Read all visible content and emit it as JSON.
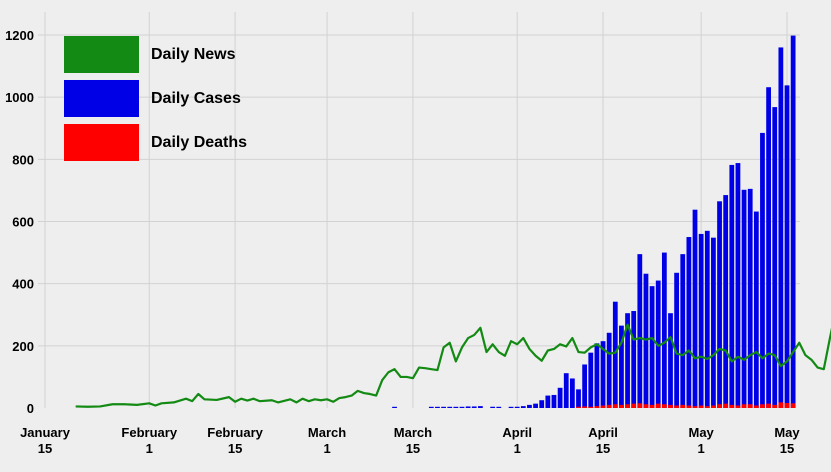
{
  "chart_data": {
    "type": "bar",
    "ylim": [
      0,
      1200
    ],
    "y_ticks": [
      0,
      200,
      400,
      600,
      800,
      1000,
      1200
    ],
    "x_ticks": [
      {
        "date": "2020-01-15",
        "lines": [
          "January",
          "15"
        ]
      },
      {
        "date": "2020-02-01",
        "lines": [
          "February",
          "1"
        ]
      },
      {
        "date": "2020-02-15",
        "lines": [
          "February",
          "15"
        ]
      },
      {
        "date": "2020-03-01",
        "lines": [
          "March",
          "1"
        ]
      },
      {
        "date": "2020-03-15",
        "lines": [
          "March",
          "15"
        ]
      },
      {
        "date": "2020-04-01",
        "lines": [
          "April",
          "1"
        ]
      },
      {
        "date": "2020-04-15",
        "lines": [
          "April",
          "15"
        ]
      },
      {
        "date": "2020-05-01",
        "lines": [
          "May",
          "1"
        ]
      },
      {
        "date": "2020-05-15",
        "lines": [
          "May",
          "15"
        ]
      }
    ],
    "grid": true,
    "legend_position": "top-left",
    "series": [
      {
        "name": "Daily News",
        "type": "line",
        "color": "#138a13",
        "points": [
          [
            "2020-01-20",
            5
          ],
          [
            "2020-01-22",
            4
          ],
          [
            "2020-01-24",
            5
          ],
          [
            "2020-01-26",
            12
          ],
          [
            "2020-01-28",
            12
          ],
          [
            "2020-01-30",
            10
          ],
          [
            "2020-02-01",
            15
          ],
          [
            "2020-02-02",
            8
          ],
          [
            "2020-02-03",
            15
          ],
          [
            "2020-02-05",
            18
          ],
          [
            "2020-02-07",
            30
          ],
          [
            "2020-02-08",
            22
          ],
          [
            "2020-02-09",
            45
          ],
          [
            "2020-02-10",
            28
          ],
          [
            "2020-02-12",
            26
          ],
          [
            "2020-02-14",
            35
          ],
          [
            "2020-02-15",
            20
          ],
          [
            "2020-02-16",
            30
          ],
          [
            "2020-02-17",
            24
          ],
          [
            "2020-02-18",
            30
          ],
          [
            "2020-02-19",
            22
          ],
          [
            "2020-02-21",
            25
          ],
          [
            "2020-02-22",
            18
          ],
          [
            "2020-02-24",
            28
          ],
          [
            "2020-02-25",
            18
          ],
          [
            "2020-02-26",
            30
          ],
          [
            "2020-02-27",
            22
          ],
          [
            "2020-02-28",
            28
          ],
          [
            "2020-02-29",
            25
          ],
          [
            "2020-03-01",
            28
          ],
          [
            "2020-03-02",
            20
          ],
          [
            "2020-03-03",
            32
          ],
          [
            "2020-03-04",
            35
          ],
          [
            "2020-03-05",
            40
          ],
          [
            "2020-03-06",
            55
          ],
          [
            "2020-03-07",
            48
          ],
          [
            "2020-03-08",
            45
          ],
          [
            "2020-03-09",
            40
          ],
          [
            "2020-03-10",
            90
          ],
          [
            "2020-03-11",
            115
          ],
          [
            "2020-03-12",
            125
          ],
          [
            "2020-03-13",
            100
          ],
          [
            "2020-03-14",
            100
          ],
          [
            "2020-03-15",
            96
          ],
          [
            "2020-03-16",
            130
          ],
          [
            "2020-03-17",
            128
          ],
          [
            "2020-03-18",
            125
          ],
          [
            "2020-03-19",
            122
          ],
          [
            "2020-03-20",
            195
          ],
          [
            "2020-03-21",
            210
          ],
          [
            "2020-03-22",
            150
          ],
          [
            "2020-03-23",
            195
          ],
          [
            "2020-03-24",
            225
          ],
          [
            "2020-03-25",
            235
          ],
          [
            "2020-03-26",
            258
          ],
          [
            "2020-03-27",
            180
          ],
          [
            "2020-03-28",
            205
          ],
          [
            "2020-03-29",
            180
          ],
          [
            "2020-03-30",
            168
          ],
          [
            "2020-03-31",
            215
          ],
          [
            "2020-04-01",
            205
          ],
          [
            "2020-04-02",
            225
          ],
          [
            "2020-04-03",
            190
          ],
          [
            "2020-04-04",
            168
          ],
          [
            "2020-04-05",
            152
          ],
          [
            "2020-04-06",
            185
          ],
          [
            "2020-04-07",
            190
          ],
          [
            "2020-04-08",
            205
          ],
          [
            "2020-04-09",
            198
          ],
          [
            "2020-04-10",
            225
          ],
          [
            "2020-04-11",
            180
          ],
          [
            "2020-04-12",
            178
          ],
          [
            "2020-04-13",
            195
          ],
          [
            "2020-04-14",
            205
          ],
          [
            "2020-04-15",
            190
          ],
          [
            "2020-04-16",
            175
          ],
          [
            "2020-04-17",
            178
          ],
          [
            "2020-04-18",
            210
          ],
          [
            "2020-04-19",
            268
          ],
          [
            "2020-04-20",
            220
          ],
          [
            "2020-04-21",
            225
          ],
          [
            "2020-04-22",
            220
          ],
          [
            "2020-04-23",
            225
          ],
          [
            "2020-04-24",
            200
          ],
          [
            "2020-04-25",
            210
          ],
          [
            "2020-04-26",
            228
          ],
          [
            "2020-04-27",
            175
          ],
          [
            "2020-04-28",
            170
          ],
          [
            "2020-04-29",
            185
          ],
          [
            "2020-04-30",
            160
          ],
          [
            "2020-05-01",
            165
          ],
          [
            "2020-05-02",
            158
          ],
          [
            "2020-05-03",
            170
          ],
          [
            "2020-05-04",
            190
          ],
          [
            "2020-05-05",
            185
          ],
          [
            "2020-05-06",
            150
          ],
          [
            "2020-05-07",
            165
          ],
          [
            "2020-05-08",
            155
          ],
          [
            "2020-05-09",
            170
          ],
          [
            "2020-05-10",
            180
          ],
          [
            "2020-05-11",
            160
          ],
          [
            "2020-05-12",
            175
          ],
          [
            "2020-05-13",
            170
          ],
          [
            "2020-05-14",
            135
          ],
          [
            "2020-05-15",
            150
          ],
          [
            "2020-05-16",
            180
          ],
          [
            "2020-05-17",
            210
          ],
          [
            "2020-05-18",
            170
          ],
          [
            "2020-05-19",
            155
          ],
          [
            "2020-05-20",
            130
          ],
          [
            "2020-05-21",
            125
          ],
          [
            "2020-05-22",
            225
          ],
          [
            "2020-05-23",
            320
          ]
        ]
      },
      {
        "name": "Daily Cases",
        "type": "bar",
        "color": "#0000e6",
        "points": [
          [
            "2020-03-12",
            2
          ],
          [
            "2020-03-18",
            2
          ],
          [
            "2020-03-19",
            2
          ],
          [
            "2020-03-20",
            2
          ],
          [
            "2020-03-21",
            2
          ],
          [
            "2020-03-22",
            3
          ],
          [
            "2020-03-23",
            3
          ],
          [
            "2020-03-24",
            5
          ],
          [
            "2020-03-25",
            5
          ],
          [
            "2020-03-26",
            6
          ],
          [
            "2020-03-28",
            4
          ],
          [
            "2020-03-29",
            3
          ],
          [
            "2020-03-31",
            2
          ],
          [
            "2020-04-01",
            4
          ],
          [
            "2020-04-02",
            6
          ],
          [
            "2020-04-03",
            10
          ],
          [
            "2020-04-04",
            14
          ],
          [
            "2020-04-05",
            25
          ],
          [
            "2020-04-06",
            40
          ],
          [
            "2020-04-07",
            42
          ],
          [
            "2020-04-08",
            65
          ],
          [
            "2020-04-09",
            112
          ],
          [
            "2020-04-10",
            95
          ],
          [
            "2020-04-11",
            60
          ],
          [
            "2020-04-12",
            140
          ],
          [
            "2020-04-13",
            178
          ],
          [
            "2020-04-14",
            208
          ],
          [
            "2020-04-15",
            215
          ],
          [
            "2020-04-16",
            242
          ],
          [
            "2020-04-17",
            342
          ],
          [
            "2020-04-18",
            265
          ],
          [
            "2020-04-19",
            305
          ],
          [
            "2020-04-20",
            312
          ],
          [
            "2020-04-21",
            495
          ],
          [
            "2020-04-22",
            432
          ],
          [
            "2020-04-23",
            392
          ],
          [
            "2020-04-24",
            410
          ],
          [
            "2020-04-25",
            500
          ],
          [
            "2020-04-26",
            305
          ],
          [
            "2020-04-27",
            435
          ],
          [
            "2020-04-28",
            495
          ],
          [
            "2020-04-29",
            550
          ],
          [
            "2020-04-30",
            638
          ],
          [
            "2020-05-01",
            560
          ],
          [
            "2020-05-02",
            570
          ],
          [
            "2020-05-03",
            548
          ],
          [
            "2020-05-04",
            665
          ],
          [
            "2020-05-05",
            685
          ],
          [
            "2020-05-06",
            782
          ],
          [
            "2020-05-07",
            788
          ],
          [
            "2020-05-08",
            702
          ],
          [
            "2020-05-09",
            705
          ],
          [
            "2020-05-10",
            632
          ],
          [
            "2020-05-11",
            885
          ],
          [
            "2020-05-12",
            1032
          ],
          [
            "2020-05-13",
            968
          ],
          [
            "2020-05-14",
            1160
          ],
          [
            "2020-05-15",
            1038
          ],
          [
            "2020-05-16",
            1198
          ]
        ]
      },
      {
        "name": "Daily Deaths",
        "type": "bar",
        "color": "#ff0000",
        "points": [
          [
            "2020-04-11",
            4
          ],
          [
            "2020-04-12",
            5
          ],
          [
            "2020-04-13",
            4
          ],
          [
            "2020-04-14",
            6
          ],
          [
            "2020-04-15",
            8
          ],
          [
            "2020-04-16",
            10
          ],
          [
            "2020-04-17",
            12
          ],
          [
            "2020-04-18",
            10
          ],
          [
            "2020-04-19",
            12
          ],
          [
            "2020-04-20",
            14
          ],
          [
            "2020-04-21",
            15
          ],
          [
            "2020-04-22",
            12
          ],
          [
            "2020-04-23",
            10
          ],
          [
            "2020-04-24",
            14
          ],
          [
            "2020-04-25",
            12
          ],
          [
            "2020-04-26",
            10
          ],
          [
            "2020-04-27",
            8
          ],
          [
            "2020-04-28",
            10
          ],
          [
            "2020-04-29",
            8
          ],
          [
            "2020-04-30",
            6
          ],
          [
            "2020-05-01",
            8
          ],
          [
            "2020-05-02",
            6
          ],
          [
            "2020-05-03",
            8
          ],
          [
            "2020-05-04",
            12
          ],
          [
            "2020-05-05",
            14
          ],
          [
            "2020-05-06",
            10
          ],
          [
            "2020-05-07",
            8
          ],
          [
            "2020-05-08",
            12
          ],
          [
            "2020-05-09",
            12
          ],
          [
            "2020-05-10",
            8
          ],
          [
            "2020-05-11",
            12
          ],
          [
            "2020-05-12",
            14
          ],
          [
            "2020-05-13",
            10
          ],
          [
            "2020-05-14",
            18
          ],
          [
            "2020-05-15",
            16
          ],
          [
            "2020-05-16",
            15
          ]
        ]
      }
    ]
  }
}
